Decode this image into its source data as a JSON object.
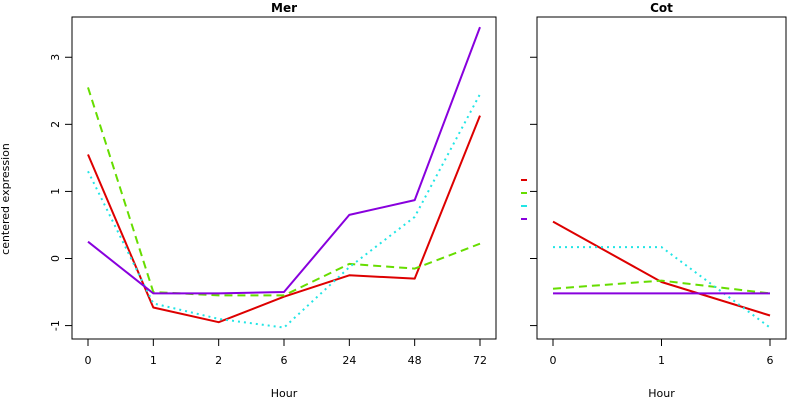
{
  "colors": {
    "red": "#dd0000",
    "green": "#66dd00",
    "cyan": "#22e5e5",
    "purple": "#8800dd",
    "frame": "#000000"
  },
  "y_axis_label": "centered expression",
  "chart_data": [
    {
      "type": "line",
      "title": "Mer",
      "xlabel": "Hour",
      "ylabel": "centered expression",
      "categories": [
        "0",
        "1",
        "2",
        "6",
        "24",
        "48",
        "72"
      ],
      "ylim": [
        -1.2,
        3.6
      ],
      "yticks": [
        -1,
        0,
        1,
        2,
        3
      ],
      "grid": false,
      "series": [
        {
          "color": "red",
          "style": "solid",
          "values": [
            1.55,
            -0.73,
            -0.95,
            -0.57,
            -0.25,
            -0.3,
            2.13
          ]
        },
        {
          "color": "green",
          "style": "dashed",
          "values": [
            2.55,
            -0.5,
            -0.55,
            -0.55,
            -0.08,
            -0.15,
            0.22
          ]
        },
        {
          "color": "cyan",
          "style": "dotted",
          "values": [
            1.3,
            -0.67,
            -0.9,
            -1.03,
            -0.13,
            0.62,
            2.45
          ]
        },
        {
          "color": "purple",
          "style": "solid",
          "values": [
            0.25,
            -0.52,
            -0.52,
            -0.5,
            0.65,
            0.87,
            3.45
          ]
        }
      ]
    },
    {
      "type": "line",
      "title": "Cot",
      "xlabel": "Hour",
      "categories": [
        "0",
        "1",
        "6"
      ],
      "ylim": [
        -1.2,
        3.6
      ],
      "yticks": [
        -1,
        0,
        1,
        2,
        3
      ],
      "grid": false,
      "series": [
        {
          "color": "red",
          "style": "solid",
          "values": [
            0.55,
            -0.35,
            -0.85
          ]
        },
        {
          "color": "green",
          "style": "dashed",
          "values": [
            -0.45,
            -0.33,
            -0.52
          ]
        },
        {
          "color": "cyan",
          "style": "dotted",
          "values": [
            0.17,
            0.17,
            -1.03
          ]
        },
        {
          "color": "purple",
          "style": "solid",
          "values": [
            -0.52,
            -0.52,
            -0.52
          ]
        }
      ]
    }
  ],
  "legend": {
    "placement": "between panels",
    "entries": [
      {
        "color": "red",
        "style": "solid"
      },
      {
        "color": "green",
        "style": "dashed"
      },
      {
        "color": "cyan",
        "style": "dotted"
      },
      {
        "color": "purple",
        "style": "solid"
      }
    ]
  }
}
